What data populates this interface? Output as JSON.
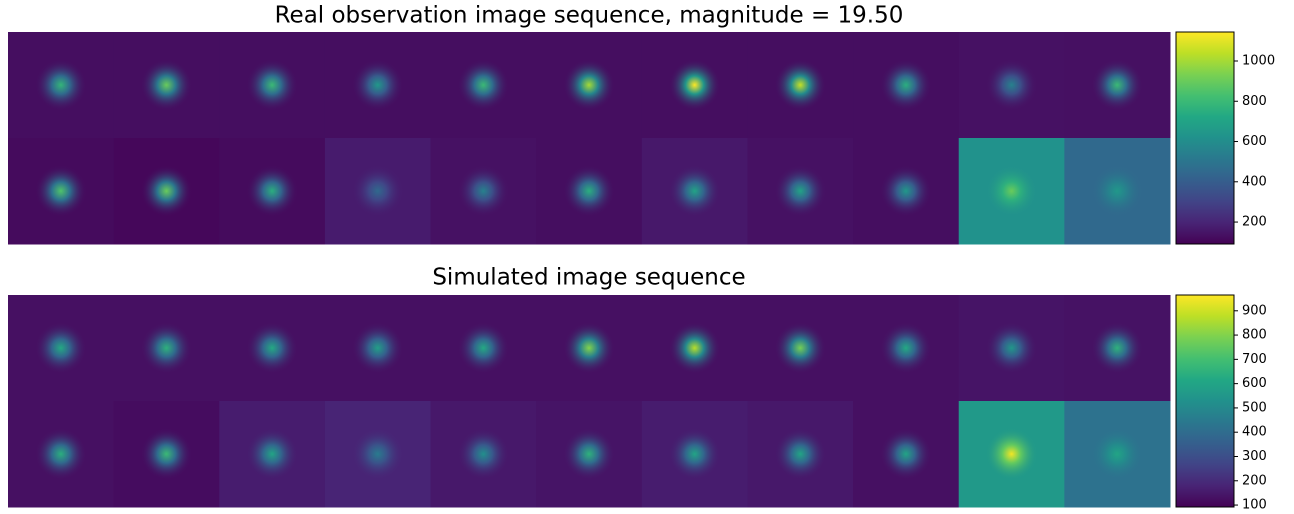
{
  "chart_data": [
    {
      "type": "image",
      "title": "Real observation image sequence, magnitude = 19.50",
      "colormap": "viridis",
      "background": [
        [
          130,
          130,
          130,
          130,
          130,
          130,
          130,
          130,
          130,
          140,
          135
        ],
        [
          120,
          110,
          120,
          170,
          140,
          130,
          160,
          140,
          130,
          620,
          450
        ]
      ],
      "peak": [
        [
          780,
          900,
          800,
          650,
          800,
          1000,
          1150,
          1050,
          750,
          550,
          800
        ],
        [
          850,
          900,
          750,
          450,
          550,
          750,
          700,
          700,
          650,
          900,
          650
        ]
      ],
      "clim": [
        91,
        1144
      ],
      "cticks": [
        200,
        400,
        600,
        800,
        1000
      ]
    },
    {
      "type": "image",
      "title": "Simulated image sequence",
      "colormap": "viridis",
      "background": [
        [
          130,
          130,
          130,
          130,
          130,
          130,
          130,
          130,
          130,
          140,
          135
        ],
        [
          130,
          120,
          160,
          180,
          150,
          140,
          160,
          150,
          130,
          560,
          420
        ]
      ],
      "peak": [
        [
          620,
          650,
          620,
          580,
          620,
          800,
          870,
          780,
          620,
          550,
          650
        ],
        [
          640,
          680,
          600,
          450,
          520,
          650,
          600,
          600,
          600,
          950,
          600
        ]
      ],
      "clim": [
        92,
        965
      ],
      "cticks": [
        100,
        200,
        300,
        400,
        500,
        600,
        700,
        800,
        900
      ]
    }
  ]
}
